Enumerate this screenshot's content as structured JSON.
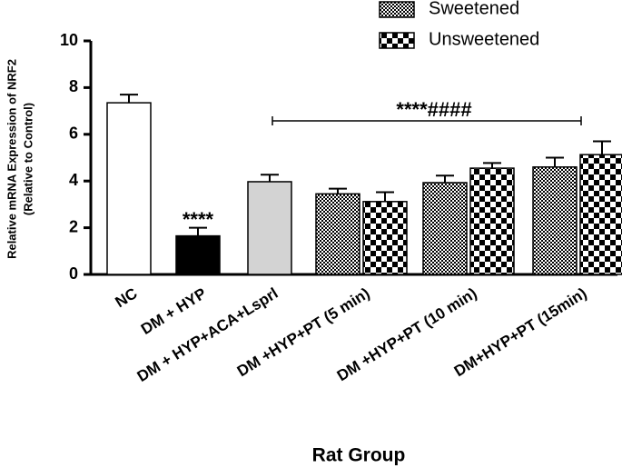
{
  "chart_data": {
    "type": "bar",
    "categories": [
      "NC",
      "DM + HYP",
      "DM + HYP+ACA+Lsprl",
      "DM +HYP+PT (5 min)",
      "DM +HYP+PT (10 min)",
      "DM+HYP+PT (15min)"
    ],
    "values": [
      7.35,
      1.65,
      3.97,
      null,
      null,
      null
    ],
    "errors": [
      0.35,
      0.35,
      0.3,
      null,
      null,
      null
    ],
    "colors": [
      "#ffffff",
      "#000000",
      "#d3d3d3",
      null,
      null,
      null
    ],
    "series": [
      {
        "name": "Sweetened",
        "color": "#000000",
        "values": [
          null,
          null,
          null,
          3.45,
          3.93,
          4.6
        ],
        "errors": [
          null,
          null,
          null,
          0.22,
          0.3,
          0.4
        ]
      },
      {
        "name": "Unsweetened",
        "color": "#000000",
        "values": [
          null,
          null,
          null,
          3.12,
          4.55,
          5.13
        ],
        "errors": [
          null,
          null,
          null,
          0.4,
          0.22,
          0.57
        ]
      }
    ],
    "y_label": [
      "Relative mRNA Expression of NRF2",
      "(Relative to Control)"
    ],
    "x_label": "Rat Group",
    "annotations": [
      "****",
      "****####"
    ],
    "ylim": [
      0,
      10
    ],
    "yticks": [
      0,
      2,
      4,
      6,
      8,
      10
    ]
  }
}
